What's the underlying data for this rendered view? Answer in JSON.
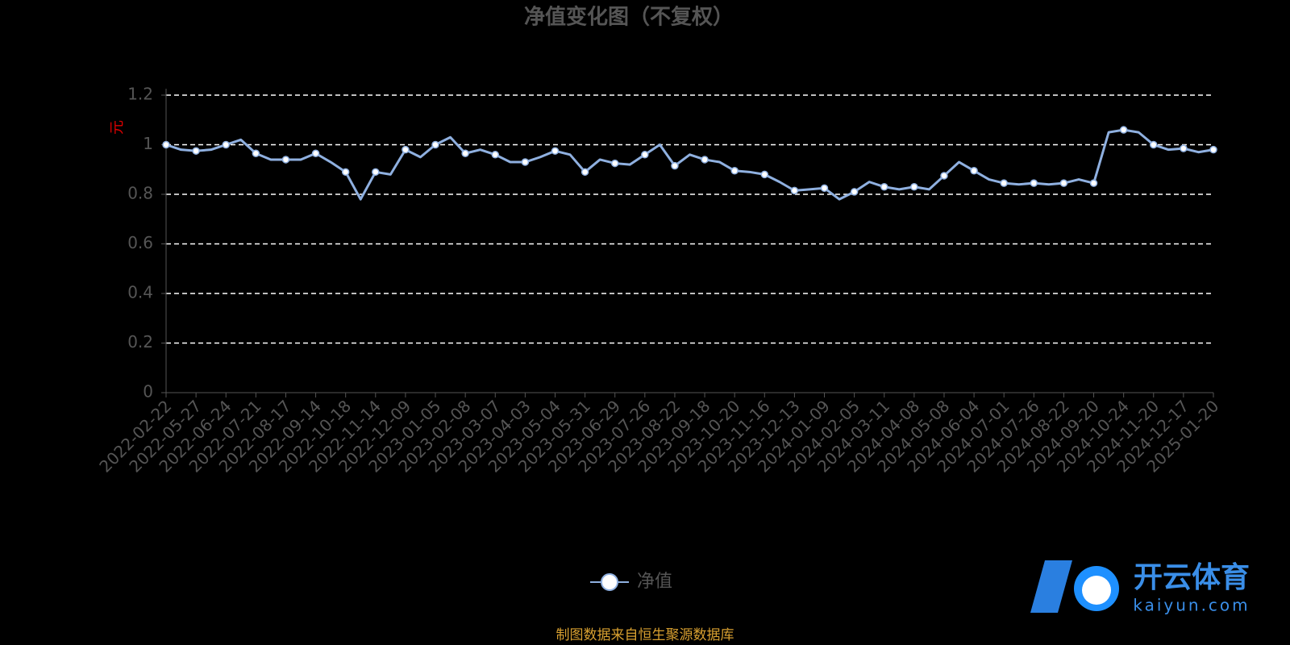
{
  "chart_data": {
    "type": "line",
    "title": "净值变化图（不复权）",
    "y_label": "元",
    "categories": [
      "2022-02-22",
      null,
      "2022-05-27",
      null,
      "2022-06-24",
      null,
      "2022-07-21",
      null,
      "2022-08-17",
      null,
      "2022-09-14",
      null,
      "2022-10-18",
      null,
      "2022-11-14",
      null,
      "2022-12-09",
      null,
      "2023-01-05",
      null,
      "2023-02-08",
      null,
      "2023-03-07",
      null,
      "2023-04-03",
      null,
      "2023-05-04",
      null,
      "2023-05-31",
      null,
      "2023-06-29",
      null,
      "2023-07-26",
      null,
      "2023-08-22",
      null,
      "2023-09-18",
      null,
      "2023-10-20",
      null,
      "2023-11-16",
      null,
      "2023-12-13",
      null,
      "2024-01-09",
      null,
      "2024-02-05",
      null,
      "2024-03-11",
      null,
      "2024-04-08",
      null,
      "2024-05-08",
      null,
      "2024-06-04",
      null,
      "2024-07-01",
      null,
      "2024-07-26",
      null,
      "2024-08-22",
      null,
      "2024-09-20",
      null,
      "2024-10-24",
      null,
      "2024-11-20",
      null,
      "2024-12-17",
      null,
      "2025-01-20"
    ],
    "series": [
      {
        "name": "净值",
        "color": "#8fb0e0",
        "values": [
          1.0,
          0.98,
          0.975,
          0.98,
          1.0,
          1.02,
          0.965,
          0.94,
          0.94,
          0.94,
          0.965,
          0.93,
          0.89,
          0.78,
          0.89,
          0.88,
          0.98,
          0.95,
          1.0,
          1.03,
          0.965,
          0.98,
          0.96,
          0.93,
          0.93,
          0.95,
          0.975,
          0.96,
          0.89,
          0.94,
          0.925,
          0.92,
          0.96,
          1.0,
          0.915,
          0.96,
          0.94,
          0.93,
          0.895,
          0.89,
          0.88,
          0.85,
          0.815,
          0.82,
          0.825,
          0.78,
          0.81,
          0.85,
          0.83,
          0.82,
          0.83,
          0.82,
          0.875,
          0.93,
          0.895,
          0.86,
          0.845,
          0.84,
          0.845,
          0.84,
          0.845,
          0.86,
          0.845,
          1.05,
          1.06,
          1.05,
          1.0,
          0.98,
          0.985,
          0.97,
          0.98
        ]
      }
    ],
    "ylim": [
      0,
      1.2
    ],
    "yticks": [
      0,
      0.2,
      0.4,
      0.6,
      0.8,
      1,
      1.2
    ],
    "grid": true,
    "source": "制图数据来自恒生聚源数据库"
  },
  "watermark": {
    "brand": "开云体育",
    "url": "kaiyun.com"
  }
}
